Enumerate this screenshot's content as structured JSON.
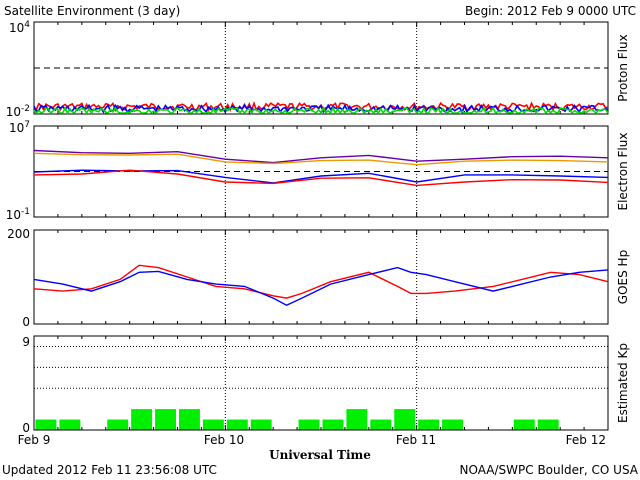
{
  "header": {
    "title": "Satellite Environment (3 day)",
    "begin": "Begin:  2012 Feb 9 0000 UTC"
  },
  "footer": {
    "updated": "Updated 2012 Feb 11 23:56:08 UTC",
    "credit": "NOAA/SWPC Boulder, CO USA"
  },
  "chart_data": [
    {
      "type": "line",
      "panel": "proton",
      "ylabel": "Proton Flux",
      "yscale": "log",
      "ylim": [
        0.01,
        10000
      ],
      "ytick_labels": [
        {
          "base": "10",
          "exp": "4"
        },
        {
          "base": "10",
          "exp": "-2"
        }
      ],
      "threshold": 10,
      "colors": {
        "red": "#ff0000",
        "blue": "#0000ff",
        "green": "#00dd00",
        "threshold": "#000000"
      },
      "series": [
        {
          "color": "red",
          "level": 0.03
        },
        {
          "color": "blue",
          "level": 0.022
        },
        {
          "color": "green",
          "level": 0.015
        }
      ]
    },
    {
      "type": "line",
      "panel": "electron",
      "ylabel": "Electron Flux",
      "yscale": "log",
      "ylim": [
        0.1,
        10000000
      ],
      "ytick_labels": [
        {
          "base": "10",
          "exp": "7"
        },
        {
          "base": "10",
          "exp": "-1"
        }
      ],
      "threshold": 1000,
      "colors": {
        "purple": "#6600aa",
        "orange": "#ee9900",
        "blue": "#0000ff",
        "red": "#ff0000"
      },
      "x": [
        0,
        0.25,
        0.5,
        0.75,
        1.0,
        1.25,
        1.5,
        1.75,
        2.0,
        2.25,
        2.5,
        2.75,
        3.0
      ],
      "series": [
        {
          "color": "purple",
          "values": [
            70000,
            45000,
            40000,
            55000,
            12000,
            6000,
            16000,
            26000,
            8000,
            12000,
            20000,
            22000,
            16000
          ]
        },
        {
          "color": "orange",
          "values": [
            40000,
            30000,
            28000,
            33000,
            7000,
            5000,
            9000,
            10000,
            4000,
            8000,
            10000,
            9000,
            7000
          ]
        },
        {
          "color": "blue",
          "values": [
            900,
            1300,
            1100,
            1200,
            300,
            100,
            400,
            700,
            120,
            500,
            500,
            400,
            300
          ]
        },
        {
          "color": "red",
          "values": [
            500,
            600,
            1300,
            600,
            120,
            90,
            260,
            280,
            60,
            120,
            190,
            180,
            110
          ]
        }
      ]
    },
    {
      "type": "line",
      "panel": "hp",
      "ylabel": "GOES Hp",
      "ylim": [
        0,
        200
      ],
      "yticks": [
        0,
        200
      ],
      "colors": {
        "red": "#ff0000",
        "blue": "#0000ff"
      },
      "x": [
        0,
        0.15,
        0.3,
        0.45,
        0.55,
        0.65,
        0.8,
        0.95,
        1.1,
        1.25,
        1.32,
        1.4,
        1.55,
        1.75,
        1.9,
        1.97,
        2.05,
        2.2,
        2.4,
        2.55,
        2.7,
        2.85,
        3.0
      ],
      "series": [
        {
          "color": "red",
          "values": [
            75,
            70,
            75,
            95,
            125,
            120,
            100,
            80,
            75,
            60,
            55,
            65,
            90,
            110,
            80,
            65,
            65,
            70,
            80,
            95,
            110,
            105,
            90
          ]
        },
        {
          "color": "blue",
          "values": [
            95,
            85,
            70,
            90,
            110,
            112,
            95,
            85,
            80,
            55,
            40,
            55,
            85,
            105,
            120,
            110,
            105,
            90,
            70,
            85,
            100,
            110,
            115
          ]
        }
      ]
    },
    {
      "type": "bar",
      "panel": "kp",
      "ylabel": "Estimated Kp",
      "ylim": [
        0,
        9
      ],
      "yticks": [
        0,
        9
      ],
      "colors": {
        "bar": "#00ee00",
        "grid": "#000000"
      },
      "grid_levels": [
        9,
        8,
        6,
        4
      ],
      "values": [
        1,
        1,
        0,
        1,
        2,
        2,
        2,
        1,
        1,
        1,
        0,
        1,
        1,
        2,
        1,
        2,
        1,
        1,
        0,
        0,
        1,
        1,
        0
      ]
    }
  ],
  "x_axis": {
    "label": "Universal Time",
    "ticks": [
      "Feb 9",
      "Feb 10",
      "Feb 11",
      "Feb 12"
    ]
  }
}
